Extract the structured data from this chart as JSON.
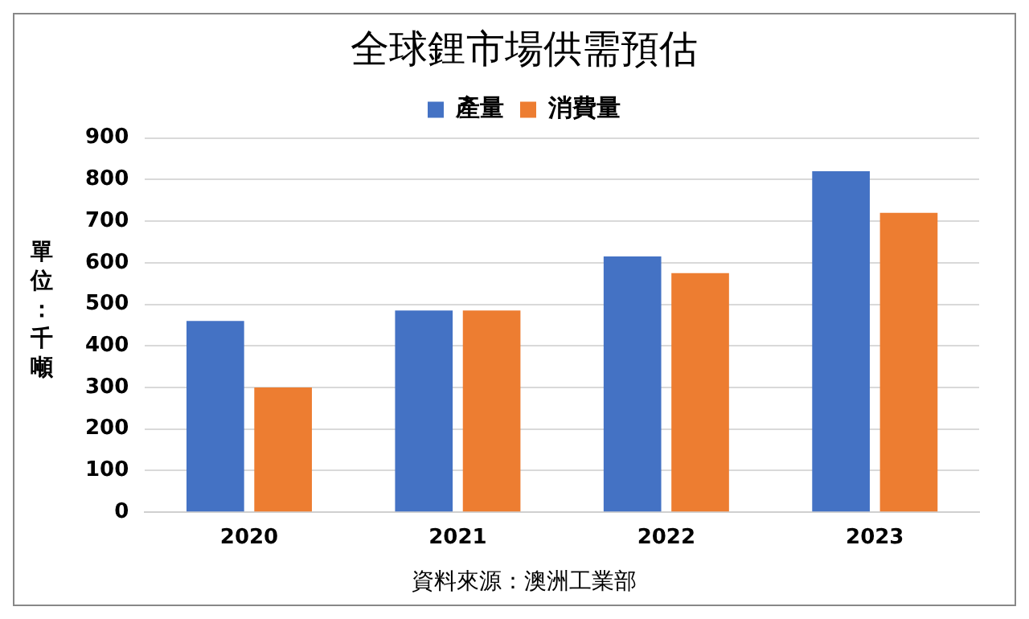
{
  "chart_data": {
    "type": "bar",
    "title": "全球鋰市場供需預估",
    "ylabel": "單位：千噸",
    "categories": [
      "2020",
      "2021",
      "2022",
      "2023"
    ],
    "series": [
      {
        "name": "產量",
        "color": "#4472c4",
        "values": [
          460,
          485,
          615,
          820
        ]
      },
      {
        "name": "消費量",
        "color": "#ed7d31",
        "values": [
          300,
          485,
          575,
          720
        ]
      }
    ],
    "ylim": [
      0,
      900
    ],
    "yticks": [
      0,
      100,
      200,
      300,
      400,
      500,
      600,
      700,
      800,
      900
    ],
    "grid": "y",
    "legend": "top",
    "annotations": [
      "資料來源：澳洲工業部"
    ]
  }
}
